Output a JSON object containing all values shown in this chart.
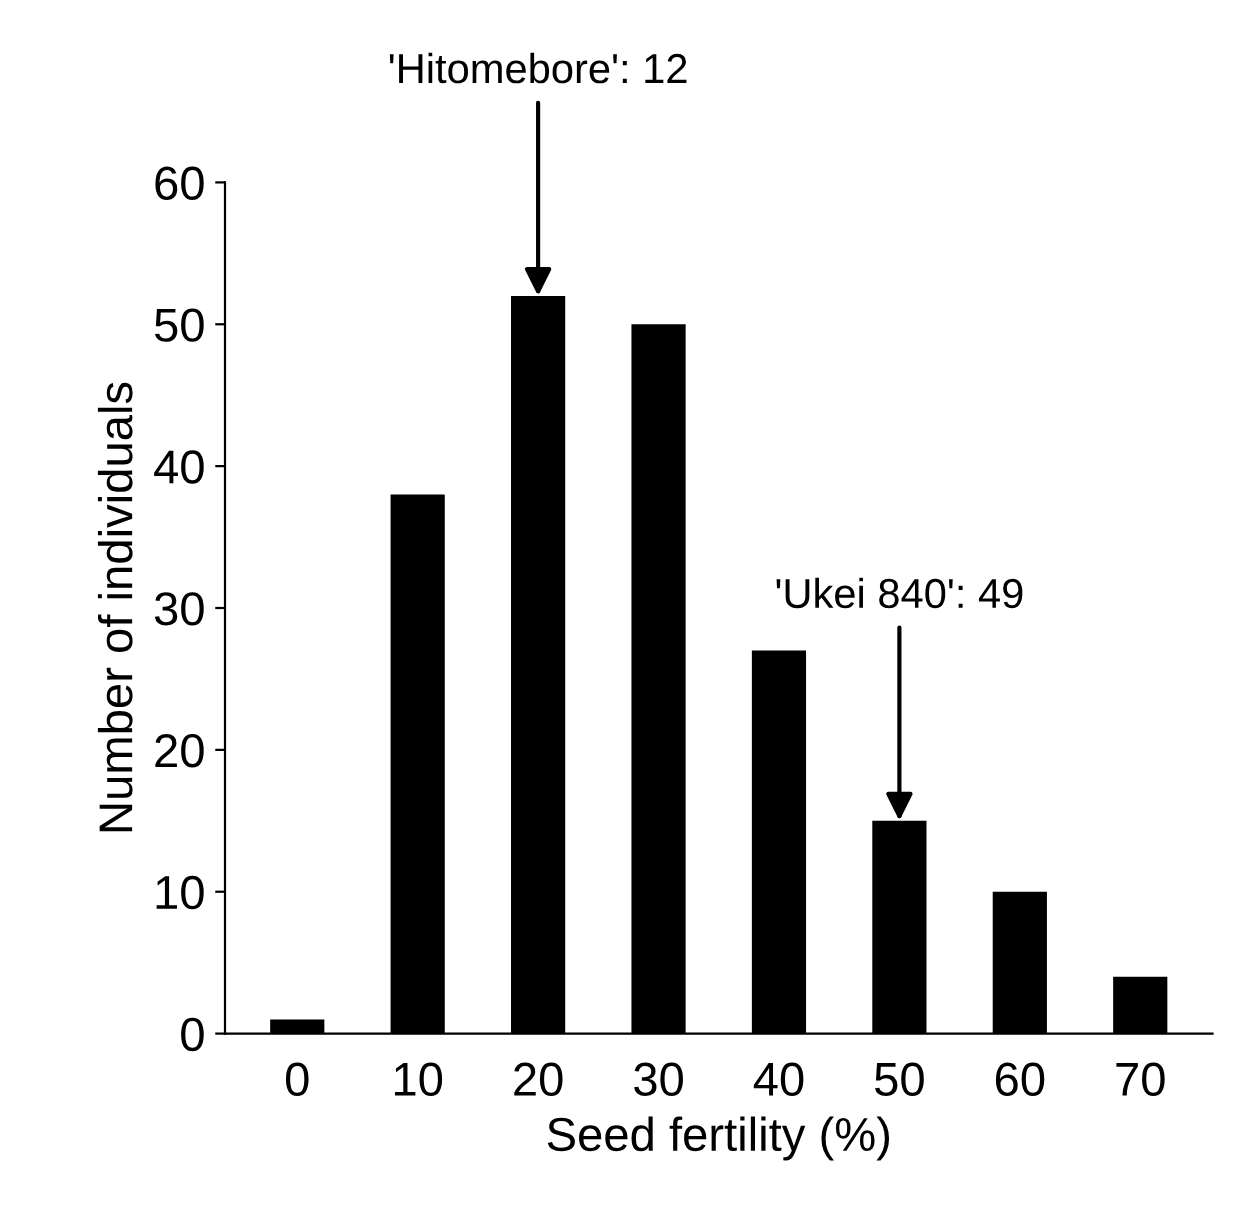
{
  "chart_data": {
    "type": "bar",
    "xlabel": "Seed fertility (%)",
    "ylabel": "Number of individuals",
    "categories": [
      "0",
      "10",
      "20",
      "30",
      "40",
      "50",
      "60",
      "70"
    ],
    "values": [
      1,
      38,
      52,
      50,
      27,
      15,
      10,
      4
    ],
    "color": "#000000",
    "ylim": [
      0,
      60
    ],
    "yticks": [
      0,
      10,
      20,
      30,
      40,
      50,
      60
    ],
    "grid": false,
    "legend": false,
    "annotations": [
      {
        "text": "'Hitomebore': 12",
        "x": "20",
        "y": 52
      },
      {
        "text": "'Ukei 840': 49",
        "x": "50",
        "y": 15
      }
    ]
  }
}
